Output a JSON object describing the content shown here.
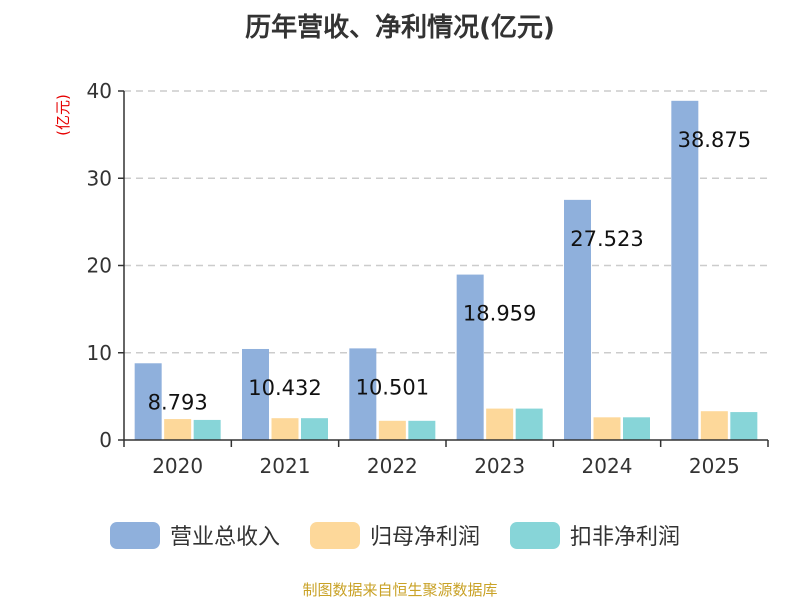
{
  "chart_data": {
    "type": "bar",
    "title": "历年营收、净利情况(亿元)",
    "unit_label": "(亿元)",
    "categories": [
      "2020",
      "2021",
      "2022",
      "2023",
      "2024",
      "2025"
    ],
    "series": [
      {
        "name": "营业总收入",
        "color": "#8fb0dc",
        "values": [
          8.793,
          10.432,
          10.501,
          18.959,
          27.523,
          38.875
        ]
      },
      {
        "name": "归母净利润",
        "color": "#fdd89a",
        "values": [
          2.4,
          2.5,
          2.2,
          3.6,
          2.6,
          3.3
        ]
      },
      {
        "name": "扣非净利润",
        "color": "#87d5d8",
        "values": [
          2.3,
          2.5,
          2.2,
          3.6,
          2.6,
          3.2
        ]
      }
    ],
    "data_labels": [
      "8.793",
      "10.432",
      "10.501",
      "18.959",
      "27.523",
      "38.875"
    ],
    "yticks": [
      "0",
      "10",
      "20",
      "30",
      "40"
    ],
    "ylim": [
      0,
      40
    ],
    "grid": true,
    "legend_position": "bottom"
  },
  "source_text": "制图数据来自恒生聚源数据库"
}
